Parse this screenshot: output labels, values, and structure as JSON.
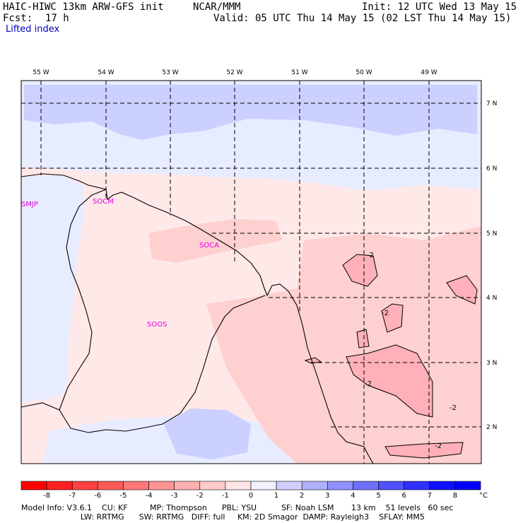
{
  "header": {
    "model_title": "HAIC-HIWC 13km ARW-GFS init",
    "org": "NCAR/MMM",
    "init": "Init: 12 UTC Wed 13 May 15",
    "fcst_label": "Fcst:",
    "fcst_value": "17 h",
    "valid": "Valid: 05 UTC Thu 14 May 15 (02 LST Thu 14 May 15)",
    "field": "Lifted index"
  },
  "map": {
    "lon_labels": [
      "55 W",
      "54 W",
      "53 W",
      "52 W",
      "51 W",
      "50 W",
      "49 W"
    ],
    "lat_labels": [
      "7 N",
      "6 N",
      "5 N",
      "4 N",
      "3 N",
      "2 N"
    ],
    "stations": [
      "SMJP",
      "SOCM",
      "SOCA",
      "SOOS"
    ],
    "contour_labels": [
      "-2",
      "-2",
      "-2",
      "-2",
      "-2"
    ],
    "colors": {
      "pos1": "#e8ecff",
      "pos2": "#ccd0ff",
      "neg1": "#ffe8e8",
      "neg2": "#ffd0d0",
      "neg3": "#ffb0b8"
    }
  },
  "colorbar": {
    "labels": [
      "-8",
      "-7",
      "-6",
      "-5",
      "-4",
      "-3",
      "-2",
      "-1",
      "0",
      "1",
      "2",
      "3",
      "4",
      "5",
      "6",
      "7",
      "8"
    ],
    "unit": "°C",
    "colors": [
      "#ff0000",
      "#ff2020",
      "#ff4040",
      "#ff5a5a",
      "#ff7878",
      "#ff9494",
      "#ffb0b0",
      "#ffcccc",
      "#ffe6e6",
      "#f0f0ff",
      "#d0d0ff",
      "#b0b0ff",
      "#9090ff",
      "#7070ff",
      "#5050ff",
      "#3030ff",
      "#1010ff",
      "#0000ff"
    ]
  },
  "footer": {
    "line1": "Model Info: V3.6.1    CU: KF         MP: Thompson      PBL: YSU          SF: Noah LSM       13 km    51 levels   60 sec",
    "line2": "                        LW: RRTMG      SW: RRTMG   DIFF: full     KM: 2D Smagor  DAMP: Rayleigh3    SFLAY: MM5"
  }
}
